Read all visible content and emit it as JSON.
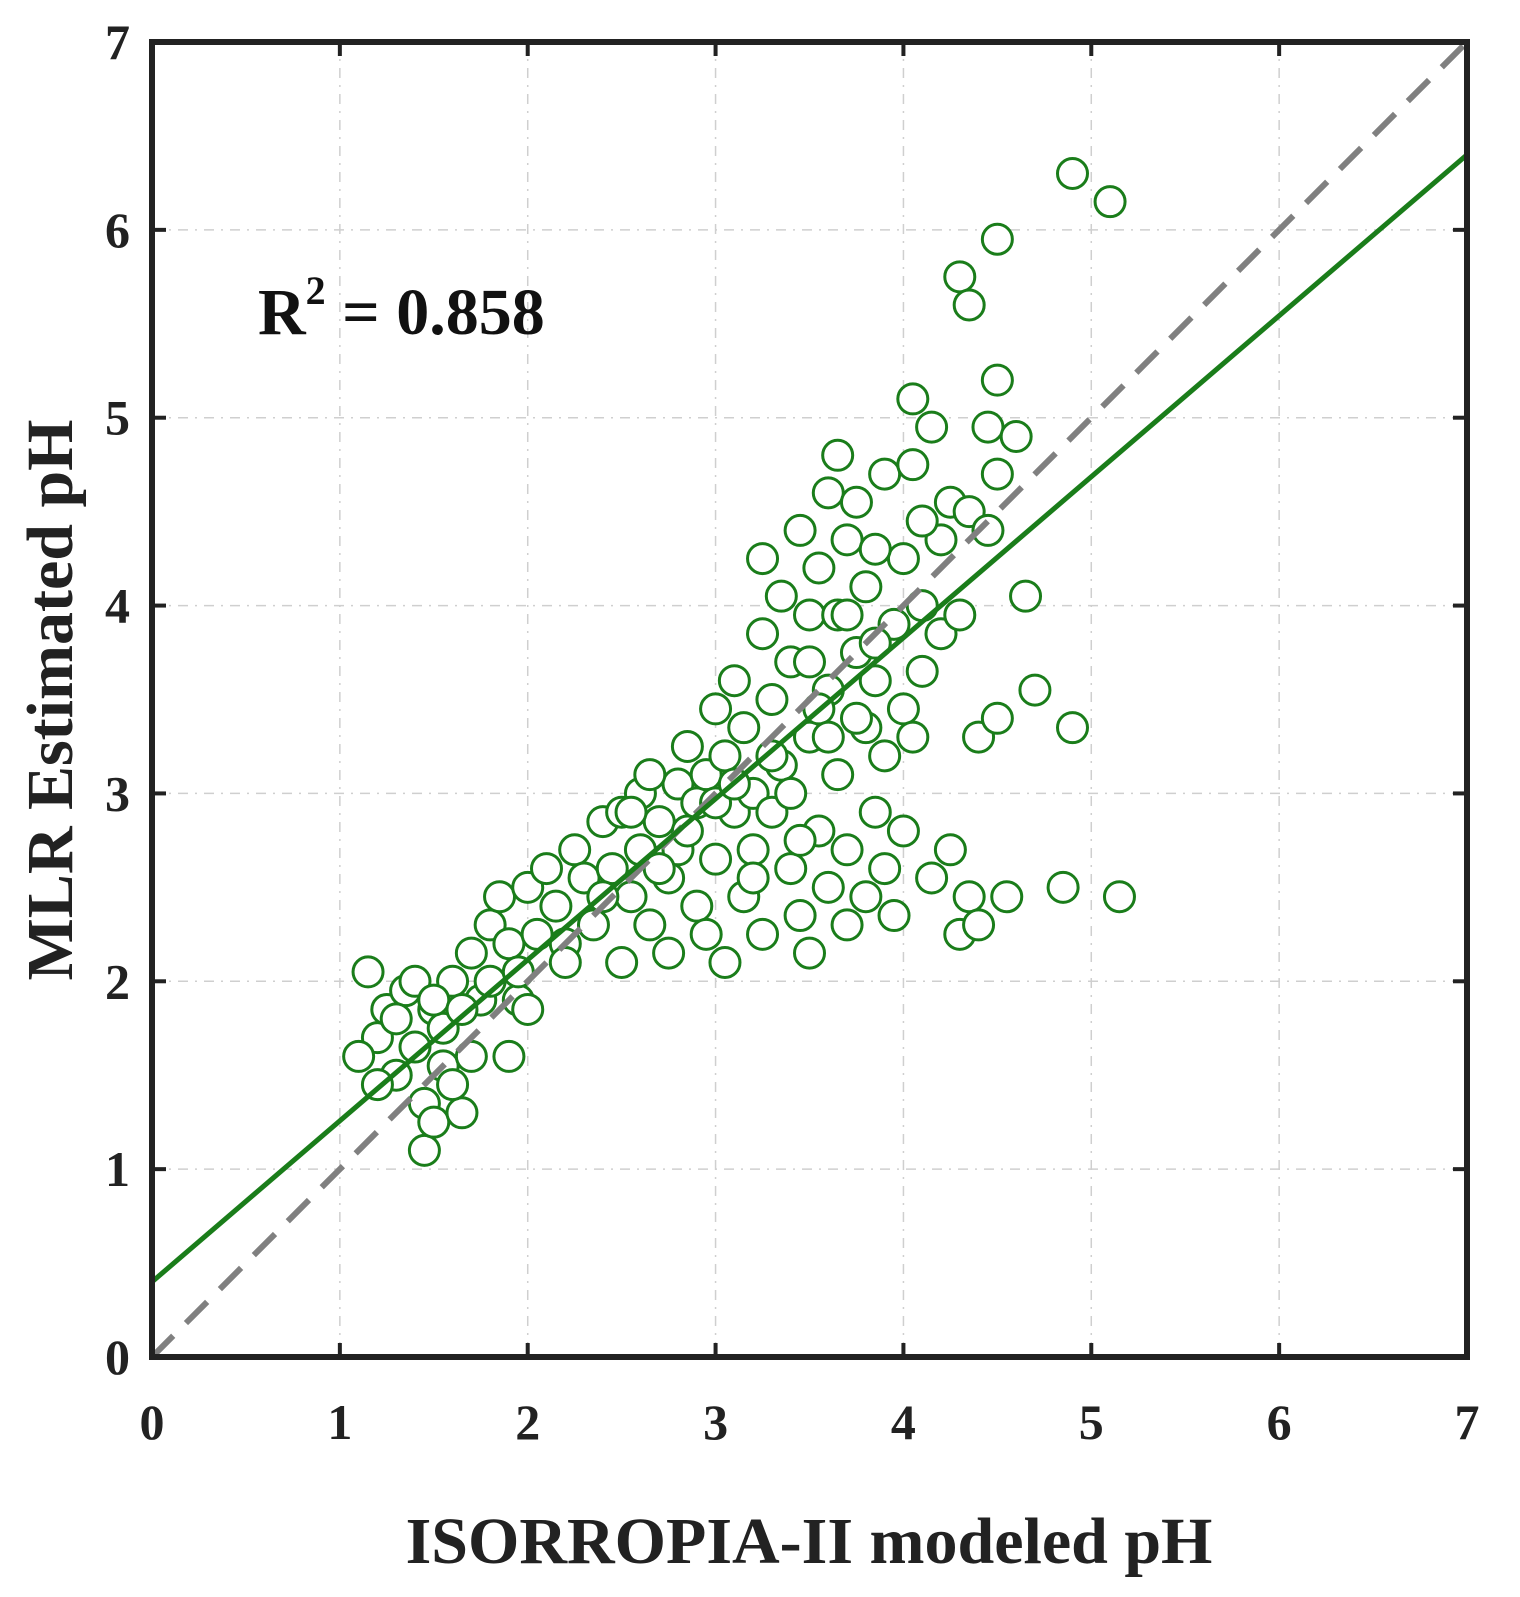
{
  "chart_data": {
    "type": "scatter",
    "title": "",
    "xlabel": "ISORROPIA-II modeled pH",
    "ylabel": "MLR Estimated pH",
    "xlim": [
      0,
      7
    ],
    "ylim": [
      0,
      7
    ],
    "xticks": [
      "0",
      "1",
      "2",
      "3",
      "4",
      "5",
      "6",
      "7"
    ],
    "yticks": [
      "0",
      "1",
      "2",
      "3",
      "4",
      "5",
      "6",
      "7"
    ],
    "grid": true,
    "annotation": {
      "prefix": "R",
      "superscript": "2",
      "text": " = 0.858",
      "value": 0.858,
      "position": "top-left"
    },
    "colors": {
      "points": "#1a7d1a",
      "fit_line": "#1a7d1a",
      "reference_line": "#808080",
      "grid": "#cfcfcf",
      "axes": "#222222"
    },
    "fit_line": {
      "name": "linear fit",
      "style": "solid",
      "slope": 0.857,
      "intercept": 0.4,
      "x": [
        0,
        7
      ],
      "y": [
        0.4,
        6.4
      ]
    },
    "reference_line": {
      "name": "1:1 line",
      "style": "dashed",
      "x": [
        0,
        7
      ],
      "y": [
        0,
        7
      ]
    },
    "series": [
      {
        "name": "samples",
        "marker": "open-circle",
        "points": [
          [
            1.15,
            2.05
          ],
          [
            1.2,
            1.7
          ],
          [
            1.1,
            1.6
          ],
          [
            1.25,
            1.85
          ],
          [
            1.3,
            1.5
          ],
          [
            1.2,
            1.45
          ],
          [
            1.35,
            1.95
          ],
          [
            1.4,
            1.65
          ],
          [
            1.45,
            1.35
          ],
          [
            1.5,
            1.85
          ],
          [
            1.45,
            1.1
          ],
          [
            1.5,
            1.25
          ],
          [
            1.55,
            1.55
          ],
          [
            1.6,
            2.0
          ],
          [
            1.55,
            1.75
          ],
          [
            1.65,
            1.3
          ],
          [
            1.7,
            1.6
          ],
          [
            1.7,
            2.15
          ],
          [
            1.75,
            1.9
          ],
          [
            1.6,
            1.45
          ],
          [
            1.4,
            2.0
          ],
          [
            1.3,
            1.8
          ],
          [
            1.5,
            1.9
          ],
          [
            1.65,
            1.85
          ],
          [
            1.8,
            2.0
          ],
          [
            1.8,
            2.3
          ],
          [
            1.85,
            2.45
          ],
          [
            1.9,
            2.2
          ],
          [
            1.9,
            1.6
          ],
          [
            1.95,
            1.9
          ],
          [
            2.0,
            2.5
          ],
          [
            2.05,
            2.25
          ],
          [
            2.0,
            1.85
          ],
          [
            2.1,
            2.6
          ],
          [
            2.15,
            2.4
          ],
          [
            2.2,
            2.2
          ],
          [
            2.25,
            2.7
          ],
          [
            2.3,
            2.55
          ],
          [
            2.35,
            2.3
          ],
          [
            2.4,
            2.85
          ],
          [
            2.45,
            2.6
          ],
          [
            2.5,
            2.1
          ],
          [
            2.5,
            2.9
          ],
          [
            2.55,
            2.45
          ],
          [
            2.6,
            2.7
          ],
          [
            2.6,
            3.0
          ],
          [
            2.65,
            2.3
          ],
          [
            2.7,
            2.85
          ],
          [
            2.75,
            2.55
          ],
          [
            2.75,
            2.15
          ],
          [
            2.8,
            3.05
          ],
          [
            2.8,
            2.7
          ],
          [
            2.85,
            3.25
          ],
          [
            2.9,
            2.4
          ],
          [
            2.9,
            2.95
          ],
          [
            2.95,
            3.1
          ],
          [
            2.95,
            2.25
          ],
          [
            3.0,
            3.45
          ],
          [
            3.0,
            2.65
          ],
          [
            3.05,
            3.2
          ],
          [
            3.05,
            2.1
          ],
          [
            3.1,
            2.9
          ],
          [
            3.1,
            3.6
          ],
          [
            3.15,
            2.45
          ],
          [
            3.15,
            3.35
          ],
          [
            3.2,
            3.0
          ],
          [
            3.2,
            2.7
          ],
          [
            3.25,
            3.85
          ],
          [
            3.25,
            4.25
          ],
          [
            3.25,
            2.25
          ],
          [
            3.3,
            3.5
          ],
          [
            3.3,
            2.9
          ],
          [
            3.35,
            3.15
          ],
          [
            3.35,
            4.05
          ],
          [
            3.4,
            2.6
          ],
          [
            3.4,
            3.7
          ],
          [
            3.45,
            4.4
          ],
          [
            3.45,
            2.35
          ],
          [
            3.5,
            3.3
          ],
          [
            3.5,
            2.15
          ],
          [
            3.5,
            3.95
          ],
          [
            3.55,
            2.8
          ],
          [
            3.55,
            4.2
          ],
          [
            3.6,
            4.6
          ],
          [
            3.6,
            3.55
          ],
          [
            3.6,
            2.5
          ],
          [
            3.65,
            3.1
          ],
          [
            3.65,
            4.8
          ],
          [
            3.65,
            3.95
          ],
          [
            3.7,
            2.3
          ],
          [
            3.7,
            4.35
          ],
          [
            3.7,
            2.7
          ],
          [
            3.75,
            3.75
          ],
          [
            3.75,
            4.55
          ],
          [
            3.8,
            3.35
          ],
          [
            3.8,
            2.45
          ],
          [
            3.8,
            4.1
          ],
          [
            3.85,
            2.9
          ],
          [
            3.85,
            3.6
          ],
          [
            3.9,
            4.7
          ],
          [
            3.9,
            2.6
          ],
          [
            3.95,
            3.9
          ],
          [
            3.95,
            2.35
          ],
          [
            4.0,
            4.25
          ],
          [
            4.0,
            3.45
          ],
          [
            4.0,
            2.8
          ],
          [
            4.05,
            5.1
          ],
          [
            4.05,
            4.75
          ],
          [
            4.1,
            4.0
          ],
          [
            4.1,
            3.65
          ],
          [
            4.15,
            4.95
          ],
          [
            4.15,
            2.55
          ],
          [
            4.2,
            4.35
          ],
          [
            4.2,
            3.85
          ],
          [
            4.25,
            2.7
          ],
          [
            4.25,
            4.55
          ],
          [
            4.3,
            2.25
          ],
          [
            4.3,
            3.95
          ],
          [
            4.35,
            2.45
          ],
          [
            4.35,
            4.5
          ],
          [
            4.4,
            2.3
          ],
          [
            4.3,
            5.75
          ],
          [
            4.35,
            5.6
          ],
          [
            4.5,
            5.95
          ],
          [
            4.5,
            5.2
          ],
          [
            4.45,
            4.95
          ],
          [
            4.5,
            4.7
          ],
          [
            4.45,
            4.4
          ],
          [
            4.4,
            3.3
          ],
          [
            4.5,
            3.4
          ],
          [
            4.55,
            2.45
          ],
          [
            4.6,
            4.9
          ],
          [
            4.65,
            4.05
          ],
          [
            4.7,
            3.55
          ],
          [
            4.85,
            2.5
          ],
          [
            4.9,
            3.35
          ],
          [
            4.9,
            6.3
          ],
          [
            5.1,
            6.15
          ],
          [
            5.15,
            2.45
          ],
          [
            3.0,
            2.95
          ],
          [
            2.7,
            2.6
          ],
          [
            3.3,
            3.2
          ],
          [
            3.55,
            3.45
          ],
          [
            2.4,
            2.45
          ],
          [
            2.2,
            2.1
          ],
          [
            1.95,
            2.05
          ],
          [
            3.85,
            3.8
          ],
          [
            3.1,
            3.05
          ],
          [
            2.85,
            2.8
          ],
          [
            3.4,
            3.0
          ],
          [
            3.6,
            3.3
          ],
          [
            3.75,
            3.4
          ],
          [
            3.9,
            3.2
          ],
          [
            4.05,
            3.3
          ],
          [
            3.2,
            2.55
          ],
          [
            3.45,
            2.75
          ],
          [
            2.55,
            2.9
          ],
          [
            2.65,
            3.1
          ],
          [
            3.7,
            3.95
          ],
          [
            3.5,
            3.7
          ],
          [
            3.85,
            4.3
          ],
          [
            4.1,
            4.45
          ]
        ]
      }
    ]
  }
}
